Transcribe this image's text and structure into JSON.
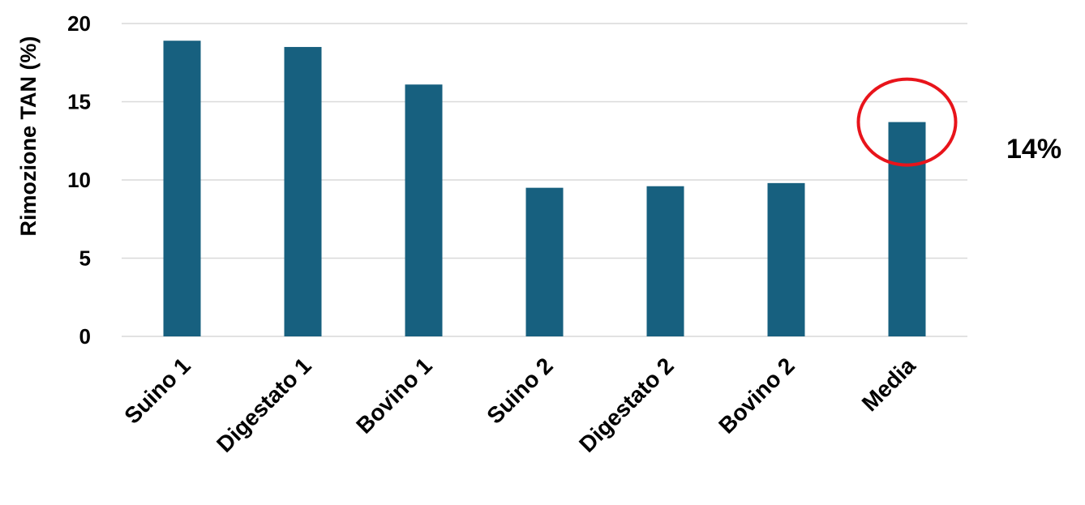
{
  "chart_data": {
    "type": "bar",
    "categories": [
      "Suino 1",
      "Digestato 1",
      "Bovino 1",
      "Suino 2",
      "Digestato 2",
      "Bovino 2",
      "Media"
    ],
    "values": [
      18.9,
      18.5,
      16.1,
      9.5,
      9.6,
      9.8,
      13.7
    ],
    "title": "",
    "xlabel": "",
    "ylabel": "Rimozione TAN (%)",
    "ylim": [
      0,
      20
    ],
    "yticks": [
      0,
      5,
      10,
      15,
      20
    ],
    "grid": true,
    "legend": "none",
    "bar_color": "#17607f",
    "highlight": {
      "category": "Media",
      "shape": "circle",
      "color": "#e8141b",
      "annotation": "14%"
    }
  }
}
